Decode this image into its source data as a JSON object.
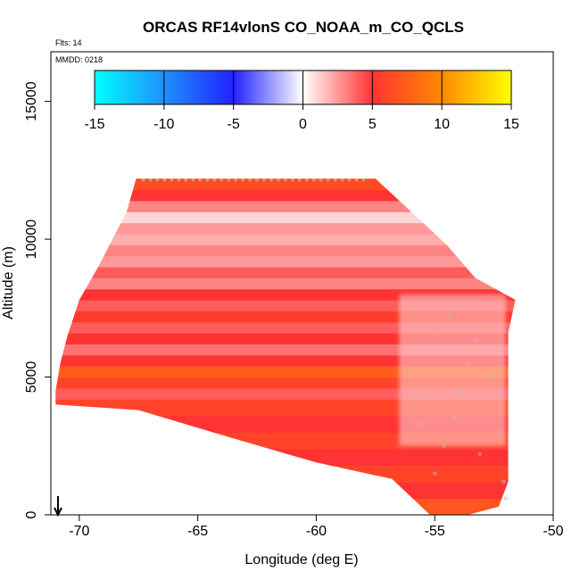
{
  "chart_data": {
    "type": "heatmap",
    "title": "ORCAS RF14vlonS CO_NOAA_m_CO_QCLS",
    "subtitle_flts": "Flts: 14",
    "subtitle_mmdd": "MMDD: 0218",
    "xlabel": "Longitude (deg E)",
    "ylabel": "Altitude (m)",
    "xlim": [
      -71.2,
      -50
    ],
    "ylim": [
      0,
      16800
    ],
    "x_ticks": [
      -70,
      -65,
      -60,
      -55,
      -50
    ],
    "x_tick_labels": [
      "-70",
      "-65",
      "-60",
      "-55",
      "-50"
    ],
    "y_ticks": [
      0,
      5000,
      10000,
      15000
    ],
    "y_tick_labels": [
      "0",
      "5000",
      "10000",
      "15000"
    ],
    "colorbar": {
      "min": -15,
      "max": 15,
      "ticks": [
        -15,
        -10,
        -5,
        0,
        5,
        10,
        15
      ],
      "tick_labels": [
        "-15",
        "-10",
        "-5",
        "0",
        "5",
        "10",
        "15"
      ],
      "colors": [
        "#00ffff",
        "#1e90ff",
        "#2222ff",
        "#ffffff",
        "#ff3333",
        "#ff8800",
        "#ffff00"
      ]
    },
    "domain_outline": [
      [
        -67.6,
        12200
      ],
      [
        -57.5,
        12200
      ],
      [
        -56.0,
        11000
      ],
      [
        -54.5,
        9800
      ],
      [
        -53.3,
        8600
      ],
      [
        -51.6,
        7800
      ],
      [
        -51.9,
        6600
      ],
      [
        -51.9,
        3500
      ],
      [
        -51.9,
        1200
      ],
      [
        -52.3,
        300
      ],
      [
        -53.6,
        0
      ],
      [
        -55.2,
        0
      ],
      [
        -56.8,
        1300
      ],
      [
        -60.0,
        1900
      ],
      [
        -64.0,
        2900
      ],
      [
        -67.5,
        3800
      ],
      [
        -71.0,
        4000
      ],
      [
        -71.0,
        4500
      ],
      [
        -70.8,
        5500
      ],
      [
        -70.5,
        6500
      ],
      [
        -70.0,
        7800
      ],
      [
        -69.2,
        9000
      ],
      [
        -68.6,
        10000
      ],
      [
        -68.0,
        11000
      ],
      [
        -67.6,
        12200
      ]
    ],
    "bands": [
      {
        "y0": 0,
        "y1": 600,
        "value": 7
      },
      {
        "y0": 600,
        "y1": 1200,
        "value": 5
      },
      {
        "y0": 1200,
        "y1": 1800,
        "value": 6
      },
      {
        "y0": 1800,
        "y1": 2400,
        "value": 5
      },
      {
        "y0": 2400,
        "y1": 3000,
        "value": 6
      },
      {
        "y0": 3000,
        "y1": 3600,
        "value": 5
      },
      {
        "y0": 3600,
        "y1": 4200,
        "value": 6
      },
      {
        "y0": 4200,
        "y1": 4600,
        "value": 4
      },
      {
        "y0": 4600,
        "y1": 5000,
        "value": 6
      },
      {
        "y0": 5000,
        "y1": 5400,
        "value": 7.5
      },
      {
        "y0": 5400,
        "y1": 5800,
        "value": 5
      },
      {
        "y0": 5800,
        "y1": 6200,
        "value": 3.5
      },
      {
        "y0": 6200,
        "y1": 6600,
        "value": 5
      },
      {
        "y0": 6600,
        "y1": 7000,
        "value": 4
      },
      {
        "y0": 7000,
        "y1": 7400,
        "value": 5.5
      },
      {
        "y0": 7400,
        "y1": 7800,
        "value": 4
      },
      {
        "y0": 7800,
        "y1": 8200,
        "value": 5
      },
      {
        "y0": 8200,
        "y1": 8600,
        "value": 3
      },
      {
        "y0": 8600,
        "y1": 9000,
        "value": 4
      },
      {
        "y0": 9000,
        "y1": 9400,
        "value": 2.5
      },
      {
        "y0": 9400,
        "y1": 9800,
        "value": 3
      },
      {
        "y0": 9800,
        "y1": 10200,
        "value": 2
      },
      {
        "y0": 10200,
        "y1": 10600,
        "value": 2.5
      },
      {
        "y0": 10600,
        "y1": 11000,
        "value": 1
      },
      {
        "y0": 11000,
        "y1": 11400,
        "value": 3
      },
      {
        "y0": 11400,
        "y1": 11800,
        "value": 5
      },
      {
        "y0": 11800,
        "y1": 12200,
        "value": 6.5
      }
    ],
    "east_pale_region": {
      "x0": -56.5,
      "x1": -52.0,
      "y0": 2500,
      "y1": 8000,
      "value": 1
    },
    "flight_arrow_x": -70.9
  }
}
